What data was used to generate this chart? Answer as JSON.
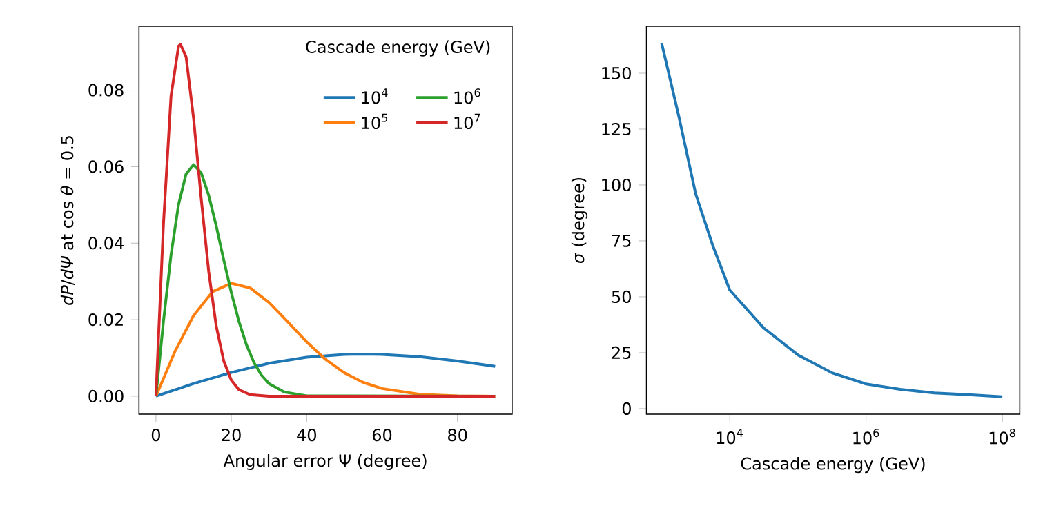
{
  "chart_data": [
    {
      "type": "line",
      "xlabel": "Angular error Ψ (degree)",
      "ylabel": "*dP*/*dΨ* at cos *θ* = 0.5",
      "legend_title": "Cascade energy (GeV)",
      "legend": "top right",
      "xlim": [
        -4.5,
        94.5
      ],
      "ylim": [
        -0.0047,
        0.0967
      ],
      "xticks": [
        0,
        20,
        40,
        60,
        80
      ],
      "yticks": [
        {
          "value": 0,
          "label": "0.00"
        },
        {
          "value": 0.02,
          "label": "0.02"
        },
        {
          "value": 0.04,
          "label": "0.04"
        },
        {
          "value": 0.06,
          "label": "0.06"
        },
        {
          "value": 0.08,
          "label": "0.08"
        }
      ],
      "series": [
        {
          "name": "10$^{4}$",
          "color": "#1f77b4",
          "x": [
            0,
            10,
            20,
            30,
            40,
            50,
            55,
            60,
            70,
            80,
            90
          ],
          "values": [
            0,
            0.0033,
            0.0062,
            0.0086,
            0.0102,
            0.0109,
            0.011,
            0.0109,
            0.0103,
            0.0092,
            0.0078
          ]
        },
        {
          "name": "10$^{5}$",
          "color": "#ff7f0e",
          "x": [
            0,
            5,
            10,
            15,
            20,
            25,
            30,
            35,
            40,
            45,
            50,
            55,
            60,
            70,
            80,
            90
          ],
          "values": [
            0,
            0.0116,
            0.0211,
            0.0273,
            0.0295,
            0.0283,
            0.0245,
            0.0194,
            0.0142,
            0.0096,
            0.0061,
            0.0036,
            0.002,
            0.0005,
            0.0001,
            0
          ]
        },
        {
          "name": "10$^{6}$",
          "color": "#2ca02c",
          "x": [
            0,
            2,
            4,
            6,
            8,
            10,
            12,
            14,
            16,
            18,
            20,
            22,
            24,
            26,
            28,
            30,
            34,
            40,
            90
          ],
          "values": [
            0,
            0.0196,
            0.0369,
            0.0501,
            0.0581,
            0.0605,
            0.0584,
            0.0525,
            0.0445,
            0.0356,
            0.0271,
            0.0196,
            0.0135,
            0.0088,
            0.0055,
            0.0033,
            0.0011,
            0.0001,
            0
          ]
        },
        {
          "name": "10$^{7}$",
          "color": "#d62728",
          "x": [
            0,
            2,
            4,
            6,
            6.5,
            8,
            10,
            12,
            14,
            16,
            18,
            20,
            22,
            25,
            30,
            90
          ],
          "values": [
            0,
            0.0451,
            0.0784,
            0.0915,
            0.092,
            0.0887,
            0.0725,
            0.0517,
            0.0326,
            0.0183,
            0.0092,
            0.0042,
            0.0017,
            0.0004,
            0,
            0
          ]
        }
      ]
    },
    {
      "type": "line",
      "xlabel": "Cascade energy (GeV)",
      "ylabel": "*σ* (degree)",
      "log": "x",
      "xlim": [
        600,
        180000000
      ],
      "ylim": [
        -2.5,
        171
      ],
      "xticks": [
        {
          "value": 10000,
          "label": "10$^{4}$"
        },
        {
          "value": 1000000,
          "label": "10$^{6}$"
        },
        {
          "value": 100000000,
          "label": "10$^{8}$"
        }
      ],
      "yticks": [
        0,
        25,
        50,
        75,
        100,
        125,
        150
      ],
      "series": [
        {
          "color": "#1f77b4",
          "x": [
            1000,
            1778,
            3162,
            5623,
            10000,
            31623,
            100000,
            316228,
            1000000,
            3162278,
            10000000,
            31622777,
            100000000
          ],
          "values": [
            163.5,
            131,
            96,
            73,
            53,
            36,
            24,
            16,
            11,
            8.6,
            7,
            6.2,
            5.3
          ]
        }
      ]
    }
  ]
}
